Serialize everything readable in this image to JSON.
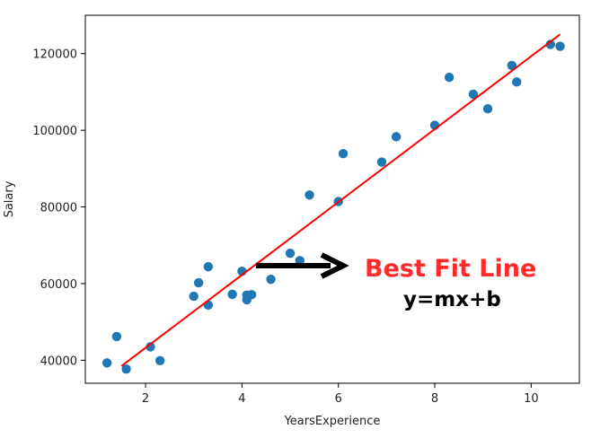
{
  "chart_data": {
    "type": "scatter",
    "title": "",
    "xlabel": "YearsExperience",
    "ylabel": "Salary",
    "xlim": [
      0.75,
      11.0
    ],
    "ylim": [
      34000,
      130000
    ],
    "xticks": [
      2,
      4,
      6,
      8,
      10
    ],
    "yticks": [
      40000,
      60000,
      80000,
      100000,
      120000
    ],
    "grid": false,
    "points_color": "#1f77b4",
    "line_color": "#ff0000",
    "points": [
      {
        "x": 1.2,
        "y": 39300
      },
      {
        "x": 1.4,
        "y": 46200
      },
      {
        "x": 1.6,
        "y": 37700
      },
      {
        "x": 2.1,
        "y": 43500
      },
      {
        "x": 2.3,
        "y": 39900
      },
      {
        "x": 3.0,
        "y": 56700
      },
      {
        "x": 3.1,
        "y": 60200
      },
      {
        "x": 3.3,
        "y": 54400
      },
      {
        "x": 3.3,
        "y": 64400
      },
      {
        "x": 3.8,
        "y": 57200
      },
      {
        "x": 4.0,
        "y": 63200
      },
      {
        "x": 4.1,
        "y": 55800
      },
      {
        "x": 4.1,
        "y": 57000
      },
      {
        "x": 4.2,
        "y": 57100
      },
      {
        "x": 4.6,
        "y": 61100
      },
      {
        "x": 5.0,
        "y": 67900
      },
      {
        "x": 5.2,
        "y": 66000
      },
      {
        "x": 5.4,
        "y": 83100
      },
      {
        "x": 6.0,
        "y": 81400
      },
      {
        "x": 6.1,
        "y": 93900
      },
      {
        "x": 6.9,
        "y": 91700
      },
      {
        "x": 7.2,
        "y": 98300
      },
      {
        "x": 8.0,
        "y": 101300
      },
      {
        "x": 8.3,
        "y": 113800
      },
      {
        "x": 8.8,
        "y": 109400
      },
      {
        "x": 9.1,
        "y": 105600
      },
      {
        "x": 9.6,
        "y": 116900
      },
      {
        "x": 9.7,
        "y": 112600
      },
      {
        "x": 10.4,
        "y": 122400
      },
      {
        "x": 10.6,
        "y": 121900
      }
    ],
    "fit_line": {
      "x": [
        1.5,
        10.6
      ],
      "y": [
        38500,
        125000
      ]
    },
    "annotations": {
      "title": "Best Fit Line",
      "equation": "y=mx+b"
    }
  }
}
